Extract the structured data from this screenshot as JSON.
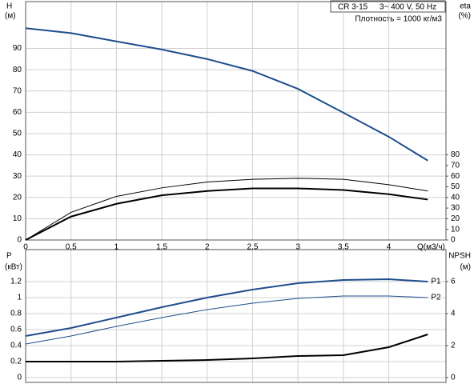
{
  "annotations": [
    "CR 3-15",
    "3~ 400 V, 50 Hz",
    "Плотность = 1000 кг/м3"
  ],
  "chart_data": [
    {
      "type": "line",
      "xlabel": "Q(м3/ч)",
      "ylabel": "H",
      "ylabel_unit": "(м)",
      "y2label": "eta",
      "y2label_unit": "(%)",
      "x": [
        0,
        0.5,
        1,
        1.5,
        2,
        2.5,
        3,
        3.5,
        4,
        4.43
      ],
      "xlim": [
        0,
        4.63
      ],
      "xticks": [
        0,
        0.5,
        1,
        1.5,
        2,
        2.5,
        3,
        3.5,
        4
      ],
      "ylim": [
        0,
        112
      ],
      "yticks": [
        0,
        10,
        20,
        30,
        40,
        50,
        60,
        70,
        80,
        90
      ],
      "y2lim": [
        0,
        224
      ],
      "y2ticks": [
        0,
        10,
        20,
        30,
        40,
        50,
        60,
        70,
        80
      ],
      "grid": true,
      "series": [
        {
          "color": "#1f4e8c",
          "width": 2,
          "values": [
            99.5,
            97.2,
            93.3,
            89.5,
            85,
            79.4,
            71,
            59.8,
            48.5,
            37.3
          ]
        },
        {
          "axis": "y2",
          "color": "#000000",
          "width": 1,
          "values": [
            0,
            26,
            41,
            49,
            54.5,
            57,
            58,
            57,
            52,
            46
          ]
        },
        {
          "axis": "y2",
          "color": "#000000",
          "width": 2,
          "values": [
            0,
            22,
            34,
            42,
            46,
            48.5,
            48.5,
            47,
            43,
            38
          ]
        }
      ]
    },
    {
      "type": "line",
      "ylabel": "P",
      "ylabel_unit": "(кВт)",
      "y2label": "NPSH",
      "y2label_unit": "(м)",
      "x": [
        0,
        0.5,
        1,
        1.5,
        2,
        2.5,
        3,
        3.5,
        4,
        4.43
      ],
      "xlim": [
        0,
        4.63
      ],
      "xticks": [
        0,
        0.5,
        1,
        1.5,
        2,
        2.5,
        3,
        3.5,
        4
      ],
      "ylim": [
        -0.06,
        1.6
      ],
      "yticks": [
        0,
        0.2,
        0.4,
        0.6,
        0.8,
        1,
        1.2
      ],
      "y2lim": [
        -0.3,
        8
      ],
      "y2ticks": [
        0,
        2,
        4,
        6
      ],
      "grid": true,
      "series": [
        {
          "name": "P1",
          "color": "#1f4e8c",
          "width": 2,
          "values": [
            0.52,
            0.62,
            0.75,
            0.88,
            1.0,
            1.1,
            1.18,
            1.22,
            1.23,
            1.2
          ]
        },
        {
          "name": "P2",
          "color": "#1f4e8c",
          "width": 1,
          "values": [
            0.42,
            0.52,
            0.64,
            0.75,
            0.85,
            0.93,
            0.99,
            1.02,
            1.02,
            1.0
          ]
        },
        {
          "axis": "y2",
          "color": "#000000",
          "width": 2,
          "values": [
            1.0,
            1.0,
            1.0,
            1.05,
            1.1,
            1.2,
            1.35,
            1.4,
            1.9,
            2.7
          ]
        }
      ]
    }
  ]
}
